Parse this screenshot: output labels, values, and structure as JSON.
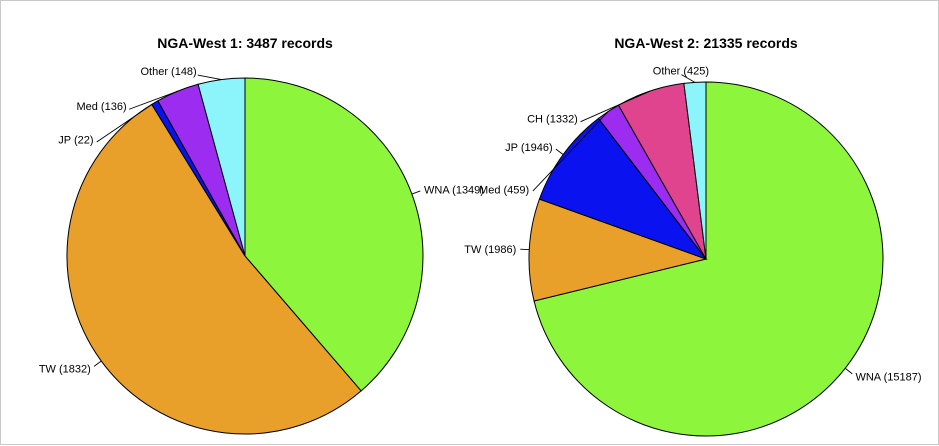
{
  "chart_data": [
    {
      "type": "pie",
      "title": "NGA-West 1: 3487 records",
      "start": "top",
      "direction": "clockwise",
      "slices": [
        {
          "label": "WNA (1349)",
          "value": 1349,
          "color": "#8ef53d"
        },
        {
          "label": "TW (1832)",
          "value": 1832,
          "color": "#e8a02a"
        },
        {
          "label": "JP (22)",
          "value": 22,
          "color": "#0a12f0"
        },
        {
          "label": "Med (136)",
          "value": 136,
          "color": "#9b2cf0"
        },
        {
          "label": "Other (148)",
          "value": 148,
          "color": "#8cf5fb"
        }
      ]
    },
    {
      "type": "pie",
      "title": "NGA-West 2: 21335 records",
      "start": "top",
      "direction": "clockwise",
      "slices": [
        {
          "label": "WNA (15187)",
          "value": 15187,
          "color": "#8ef53d"
        },
        {
          "label": "TW (1986)",
          "value": 1986,
          "color": "#e8a02a"
        },
        {
          "label": "JP (1946)",
          "value": 1946,
          "color": "#0a12f0"
        },
        {
          "label": "Med (459)",
          "value": 459,
          "color": "#9b2cf0"
        },
        {
          "label": "CH (1332)",
          "value": 1332,
          "color": "#e0448e"
        },
        {
          "label": "Other (425)",
          "value": 425,
          "color": "#8cf5fb"
        }
      ]
    }
  ]
}
